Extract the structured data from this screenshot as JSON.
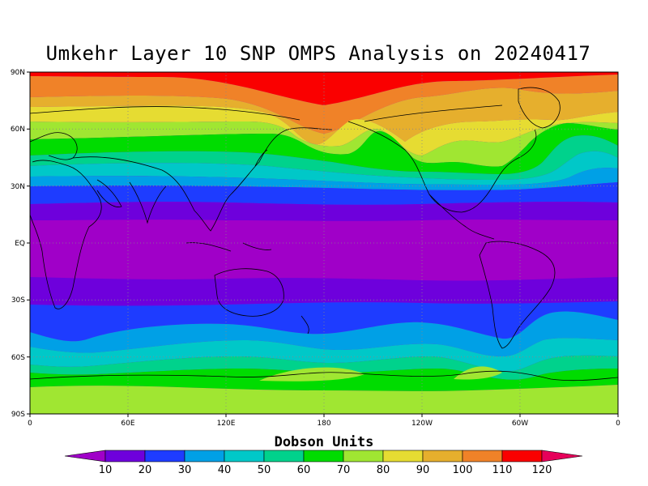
{
  "title": "Umkehr Layer 10 SNP OMPS Analysis on 20240417",
  "map": {
    "lat_labels": [
      "90N",
      "60N",
      "30N",
      "EQ",
      "30S",
      "60S",
      "90S"
    ],
    "lon_labels": [
      "0",
      "60E",
      "120E",
      "180",
      "120W",
      "60W",
      "0"
    ]
  },
  "colorbar": {
    "title": "Dobson Units",
    "labels": [
      "10",
      "20",
      "30",
      "40",
      "50",
      "60",
      "70",
      "80",
      "90",
      "100",
      "110",
      "120"
    ],
    "colors": [
      "#a000c8",
      "#6e00dc",
      "#1e3cff",
      "#00a0e6",
      "#00c8c8",
      "#00d28c",
      "#00dc00",
      "#a0e632",
      "#e6dc32",
      "#e6af2d",
      "#f08228",
      "#fa0000",
      "#e6005a"
    ]
  },
  "chart_data": {
    "type": "heatmap",
    "title": "Umkehr Layer 10 SNP OMPS Analysis on 20240417",
    "units": "Dobson Units",
    "x_range": [
      "0",
      "0"
    ],
    "y_range": [
      "90S",
      "90N"
    ],
    "levels": [
      10,
      20,
      30,
      40,
      50,
      60,
      70,
      80,
      90,
      100,
      110,
      120
    ]
  }
}
